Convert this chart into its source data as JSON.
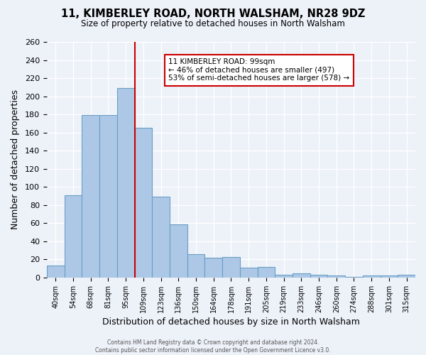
{
  "title": "11, KIMBERLEY ROAD, NORTH WALSHAM, NR28 9DZ",
  "subtitle": "Size of property relative to detached houses in North Walsham",
  "xlabel": "Distribution of detached houses by size in North Walsham",
  "ylabel": "Number of detached properties",
  "bar_labels": [
    "40sqm",
    "54sqm",
    "68sqm",
    "81sqm",
    "95sqm",
    "109sqm",
    "123sqm",
    "136sqm",
    "150sqm",
    "164sqm",
    "178sqm",
    "191sqm",
    "205sqm",
    "219sqm",
    "233sqm",
    "246sqm",
    "260sqm",
    "274sqm",
    "288sqm",
    "301sqm",
    "315sqm"
  ],
  "bar_values": [
    13,
    91,
    179,
    179,
    209,
    165,
    89,
    59,
    26,
    22,
    23,
    11,
    12,
    3,
    5,
    3,
    2,
    1,
    2,
    2,
    3
  ],
  "bar_color": "#adc8e6",
  "bar_edge_color": "#6a9ec5",
  "background_color": "#edf2f9",
  "grid_color": "#ffffff",
  "vline_x": 4.5,
  "vline_color": "#cc0000",
  "annotation_title": "11 KIMBERLEY ROAD: 99sqm",
  "annotation_line1": "← 46% of detached houses are smaller (497)",
  "annotation_line2": "53% of semi-detached houses are larger (578) →",
  "annotation_box_color": "#ffffff",
  "annotation_border_color": "#cc0000",
  "ylim": [
    0,
    260
  ],
  "yticks": [
    0,
    20,
    40,
    60,
    80,
    100,
    120,
    140,
    160,
    180,
    200,
    220,
    240,
    260
  ],
  "footer_line1": "Contains HM Land Registry data © Crown copyright and database right 2024.",
  "footer_line2": "Contains public sector information licensed under the Open Government Licence v3.0."
}
